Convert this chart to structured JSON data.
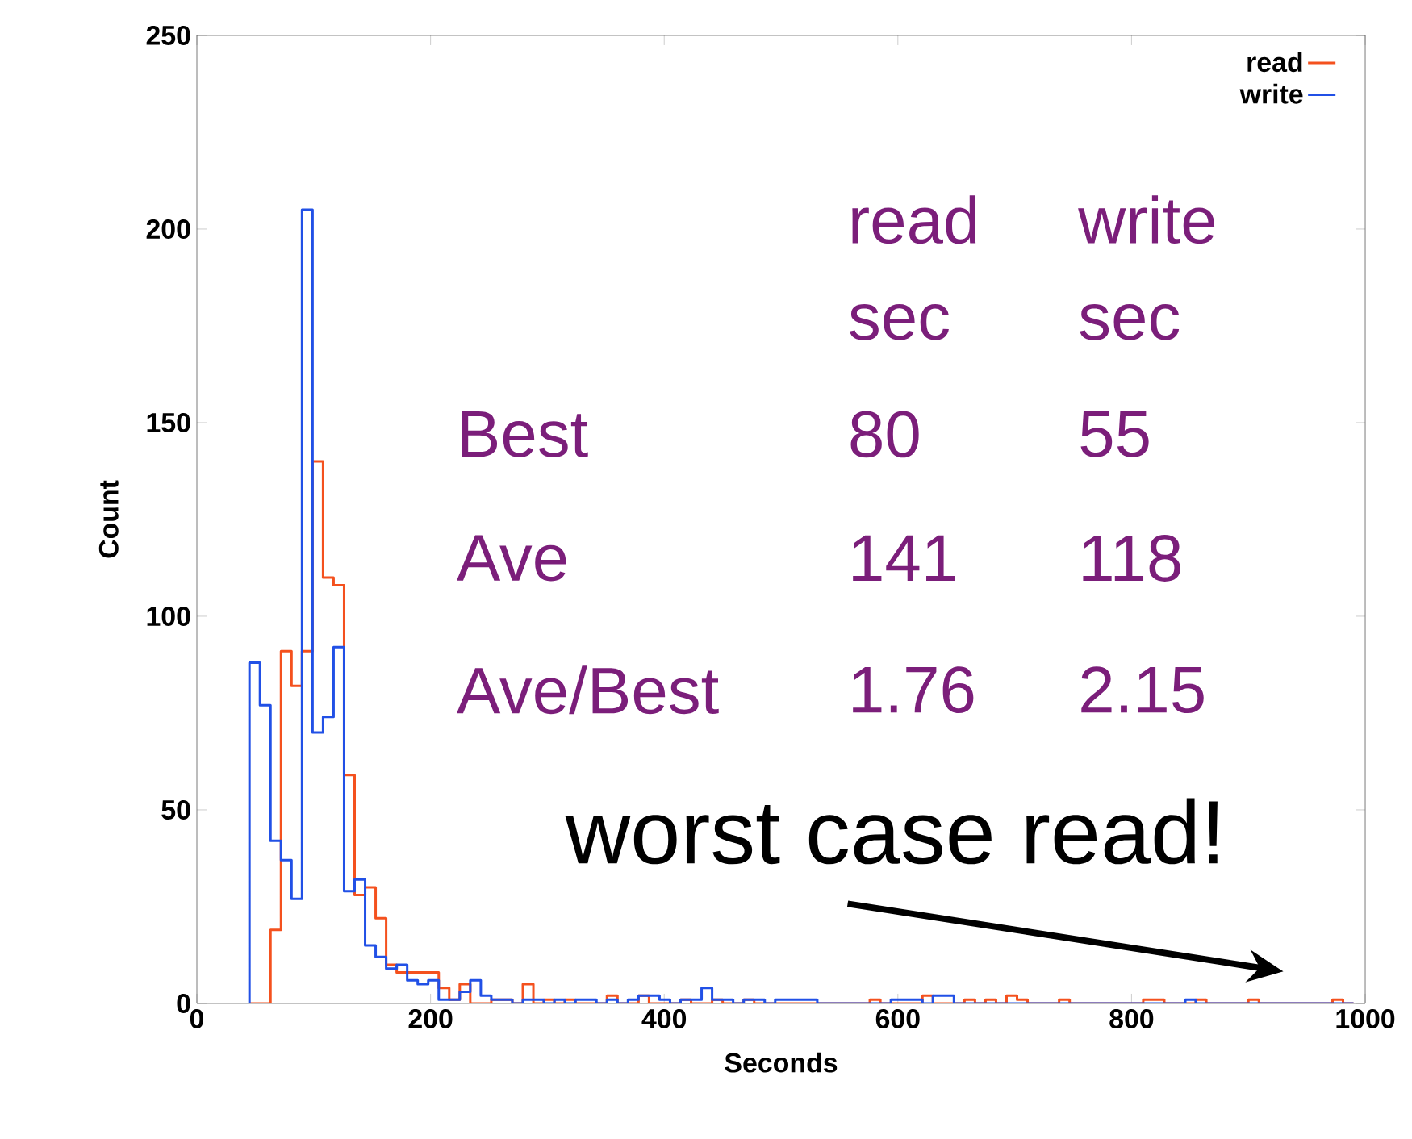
{
  "chart_data": {
    "type": "histogram",
    "xlabel": "Seconds",
    "ylabel": "Count",
    "bins": [
      45,
      54,
      63,
      72,
      81,
      90,
      99,
      108,
      117,
      126,
      135,
      144,
      153,
      162,
      171,
      180,
      189,
      198,
      207,
      216,
      225,
      234,
      243,
      252,
      261,
      270,
      279,
      288,
      297,
      306,
      315,
      324,
      333,
      342,
      351,
      360,
      369,
      378,
      387,
      396,
      405,
      414,
      423,
      432,
      441,
      450,
      459,
      468,
      477,
      486,
      495,
      504,
      513,
      522,
      531,
      540,
      549,
      558,
      567,
      576,
      585,
      594,
      603,
      612,
      621,
      630,
      639,
      648,
      657,
      666,
      675,
      684,
      693,
      702,
      711,
      720,
      729,
      738,
      747,
      756,
      765,
      774,
      783,
      792,
      801,
      810,
      819,
      828,
      837,
      846,
      855,
      864,
      873,
      882,
      891,
      900,
      909,
      918,
      927,
      936,
      945,
      954,
      963,
      972,
      981,
      990
    ],
    "series": [
      {
        "name": "read",
        "color": "#f4511e",
        "values": [
          0,
          0,
          19,
          91,
          82,
          91,
          140,
          110,
          108,
          59,
          28,
          30,
          22,
          10,
          8,
          8,
          8,
          8,
          4,
          1,
          5,
          0,
          0,
          1,
          1,
          0,
          5,
          0,
          1,
          0,
          1,
          0,
          0,
          0,
          2,
          0,
          0,
          2,
          0,
          0,
          0,
          1,
          0,
          0,
          1,
          0,
          0,
          1,
          0,
          0,
          0,
          0,
          0,
          0,
          0,
          0,
          0,
          0,
          0,
          1,
          0,
          0,
          0,
          0,
          2,
          0,
          0,
          0,
          1,
          0,
          1,
          0,
          2,
          1,
          0,
          0,
          0,
          1,
          0,
          0,
          0,
          0,
          0,
          0,
          0,
          1,
          1,
          0,
          0,
          0,
          1,
          0,
          0,
          0,
          0,
          1,
          0,
          0,
          0,
          0,
          0,
          0,
          0,
          1,
          0
        ]
      },
      {
        "name": "write",
        "color": "#2150e6",
        "values": [
          88,
          77,
          42,
          37,
          27,
          205,
          70,
          74,
          92,
          29,
          32,
          15,
          12,
          9,
          10,
          6,
          5,
          6,
          1,
          1,
          3,
          6,
          2,
          1,
          1,
          0,
          1,
          1,
          0,
          1,
          0,
          1,
          1,
          0,
          1,
          0,
          1,
          2,
          2,
          1,
          0,
          1,
          1,
          4,
          1,
          1,
          0,
          1,
          1,
          0,
          1,
          1,
          1,
          1,
          0,
          0,
          0,
          0,
          0,
          0,
          0,
          1,
          1,
          1,
          0,
          2,
          2,
          0,
          0,
          0,
          0,
          0,
          0,
          0,
          0,
          0,
          0,
          0,
          0,
          0,
          0,
          0,
          0,
          0,
          0,
          0,
          0,
          0,
          0,
          1,
          0,
          0,
          0,
          0,
          0,
          0,
          0,
          0,
          0,
          0,
          0,
          0,
          0,
          0,
          0
        ]
      }
    ],
    "xlim": [
      0,
      1000
    ],
    "ylim": [
      0,
      250
    ],
    "xticks": [
      0,
      200,
      400,
      600,
      800,
      1000
    ],
    "yticks": [
      0,
      50,
      100,
      150,
      200,
      250
    ],
    "legend": "top right",
    "annotations": [
      "read sec",
      "write sec",
      "Best",
      "80",
      "55",
      "Ave",
      "141",
      "118",
      "Ave/Best",
      "1.76",
      "2.15",
      "worst case read!"
    ]
  }
}
